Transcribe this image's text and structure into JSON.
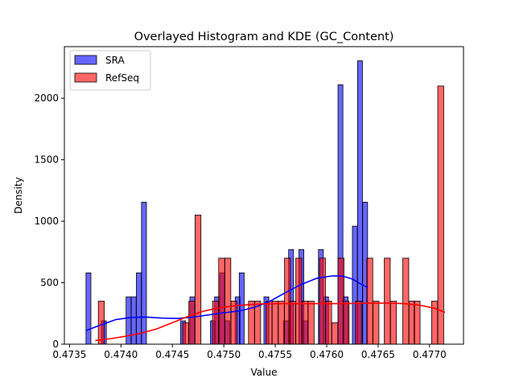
{
  "chart_data": {
    "type": "histogram",
    "title": "Overlayed Histogram and KDE (GC_Content)",
    "xlabel": "Value",
    "ylabel": "Density",
    "xlim": [
      0.47345,
      0.47733
    ],
    "ylim": [
      0,
      2420
    ],
    "xticks": [
      0.4735,
      0.474,
      0.4745,
      0.475,
      0.4755,
      0.476,
      0.4765,
      0.477
    ],
    "xtick_labels": [
      "0.4735",
      "0.4740",
      "0.4745",
      "0.4750",
      "0.4755",
      "0.4760",
      "0.4765",
      "0.4770"
    ],
    "yticks": [
      0,
      500,
      1000,
      1500,
      2000
    ],
    "ytick_labels": [
      "0",
      "500",
      "1000",
      "1500",
      "2000"
    ],
    "legend_position": "upper-left",
    "grid": false,
    "series": [
      {
        "name": "SRA",
        "color": "#0000ff",
        "bin_width": 4.78e-05,
        "bins": [
          {
            "x": 0.47366,
            "density": 580
          },
          {
            "x": 0.47381,
            "density": 190
          },
          {
            "x": 0.47405,
            "density": 385
          },
          {
            "x": 0.4741,
            "density": 385
          },
          {
            "x": 0.47415,
            "density": 580
          },
          {
            "x": 0.4742,
            "density": 1155
          },
          {
            "x": 0.47458,
            "density": 190
          },
          {
            "x": 0.47467,
            "density": 385
          },
          {
            "x": 0.47487,
            "density": 190
          },
          {
            "x": 0.47491,
            "density": 385
          },
          {
            "x": 0.47496,
            "density": 580
          },
          {
            "x": 0.47501,
            "density": 190
          },
          {
            "x": 0.47511,
            "density": 385
          },
          {
            "x": 0.47515,
            "density": 580
          },
          {
            "x": 0.47539,
            "density": 385
          },
          {
            "x": 0.47558,
            "density": 190
          },
          {
            "x": 0.47563,
            "density": 770
          },
          {
            "x": 0.47573,
            "density": 770
          },
          {
            "x": 0.47577,
            "density": 190
          },
          {
            "x": 0.47592,
            "density": 770
          },
          {
            "x": 0.47597,
            "density": 385
          },
          {
            "x": 0.47611,
            "density": 2110
          },
          {
            "x": 0.47616,
            "density": 385
          },
          {
            "x": 0.47625,
            "density": 960
          },
          {
            "x": 0.4763,
            "density": 2305
          },
          {
            "x": 0.47635,
            "density": 1155
          }
        ]
      },
      {
        "name": "RefSeq",
        "color": "#ff0000",
        "bin_width": 5.78e-05,
        "bins": [
          {
            "x": 0.47378,
            "density": 350
          },
          {
            "x": 0.4746,
            "density": 175
          },
          {
            "x": 0.47466,
            "density": 350
          },
          {
            "x": 0.47472,
            "density": 1050
          },
          {
            "x": 0.47489,
            "density": 350
          },
          {
            "x": 0.47495,
            "density": 700
          },
          {
            "x": 0.47501,
            "density": 700
          },
          {
            "x": 0.47507,
            "density": 350
          },
          {
            "x": 0.47524,
            "density": 350
          },
          {
            "x": 0.4753,
            "density": 350
          },
          {
            "x": 0.47541,
            "density": 350
          },
          {
            "x": 0.47547,
            "density": 350
          },
          {
            "x": 0.47553,
            "density": 350
          },
          {
            "x": 0.47559,
            "density": 700
          },
          {
            "x": 0.47564,
            "density": 350
          },
          {
            "x": 0.4757,
            "density": 700
          },
          {
            "x": 0.47576,
            "density": 350
          },
          {
            "x": 0.47582,
            "density": 350
          },
          {
            "x": 0.47593,
            "density": 700
          },
          {
            "x": 0.47599,
            "density": 350
          },
          {
            "x": 0.47605,
            "density": 175
          },
          {
            "x": 0.47611,
            "density": 700
          },
          {
            "x": 0.47616,
            "density": 350
          },
          {
            "x": 0.47628,
            "density": 350
          },
          {
            "x": 0.47639,
            "density": 700
          },
          {
            "x": 0.47645,
            "density": 350
          },
          {
            "x": 0.47656,
            "density": 700
          },
          {
            "x": 0.47662,
            "density": 350
          },
          {
            "x": 0.47674,
            "density": 700
          },
          {
            "x": 0.4768,
            "density": 350
          },
          {
            "x": 0.47685,
            "density": 350
          },
          {
            "x": 0.47702,
            "density": 350
          },
          {
            "x": 0.47708,
            "density": 2100
          }
        ]
      }
    ],
    "kde": [
      {
        "series": "SRA",
        "color": "#0000ff",
        "points": [
          [
            0.47366,
            110
          ],
          [
            0.4738,
            155
          ],
          [
            0.47395,
            200
          ],
          [
            0.4741,
            218
          ],
          [
            0.47425,
            220
          ],
          [
            0.4744,
            212
          ],
          [
            0.47455,
            210
          ],
          [
            0.4747,
            220
          ],
          [
            0.47485,
            238
          ],
          [
            0.475,
            255
          ],
          [
            0.47515,
            270
          ],
          [
            0.4753,
            300
          ],
          [
            0.47545,
            350
          ],
          [
            0.4756,
            420
          ],
          [
            0.47575,
            485
          ],
          [
            0.4759,
            535
          ],
          [
            0.47605,
            555
          ],
          [
            0.47615,
            555
          ],
          [
            0.47625,
            530
          ],
          [
            0.47632,
            495
          ],
          [
            0.4764,
            460
          ]
        ]
      },
      {
        "series": "RefSeq",
        "color": "#ff0000",
        "points": [
          [
            0.47375,
            30
          ],
          [
            0.4739,
            45
          ],
          [
            0.47405,
            65
          ],
          [
            0.4742,
            90
          ],
          [
            0.47435,
            125
          ],
          [
            0.4745,
            175
          ],
          [
            0.47465,
            225
          ],
          [
            0.4748,
            268
          ],
          [
            0.47495,
            295
          ],
          [
            0.4751,
            312
          ],
          [
            0.47525,
            322
          ],
          [
            0.4754,
            328
          ],
          [
            0.47555,
            330
          ],
          [
            0.4757,
            330
          ],
          [
            0.47585,
            330
          ],
          [
            0.476,
            330
          ],
          [
            0.47615,
            330
          ],
          [
            0.4763,
            332
          ],
          [
            0.47645,
            334
          ],
          [
            0.4766,
            334
          ],
          [
            0.47675,
            330
          ],
          [
            0.4769,
            318
          ],
          [
            0.47705,
            292
          ],
          [
            0.47715,
            258
          ]
        ]
      }
    ]
  }
}
